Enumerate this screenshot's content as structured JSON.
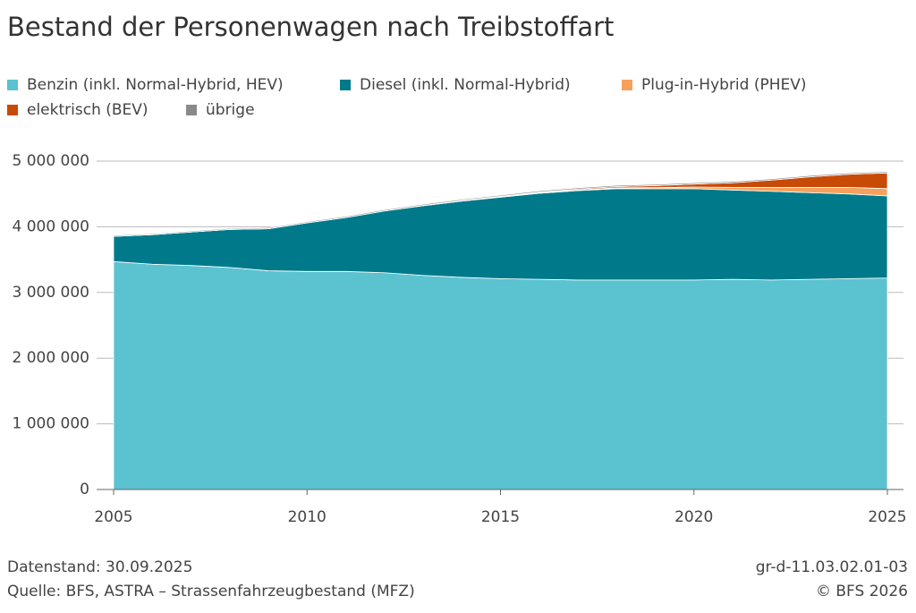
{
  "chart_data": {
    "type": "stacked-area",
    "title": "Bestand der Personenwagen nach Treibstoffart",
    "x": [
      2005,
      2006,
      2007,
      2008,
      2009,
      2010,
      2011,
      2012,
      2013,
      2014,
      2015,
      2016,
      2017,
      2018,
      2019,
      2020,
      2021,
      2022,
      2023,
      2024,
      2025
    ],
    "series": [
      {
        "name": "Benzin (inkl. Normal-Hybrid, HEV)",
        "color": "#5bc2d0",
        "values": [
          3470000,
          3430000,
          3410000,
          3380000,
          3330000,
          3320000,
          3320000,
          3300000,
          3260000,
          3230000,
          3210000,
          3200000,
          3190000,
          3190000,
          3190000,
          3190000,
          3200000,
          3190000,
          3200000,
          3210000,
          3220000
        ]
      },
      {
        "name": "Diesel (inkl. Normal-Hybrid)",
        "color": "#007a8a",
        "values": [
          385000,
          450000,
          510000,
          580000,
          640000,
          740000,
          820000,
          940000,
          1060000,
          1160000,
          1240000,
          1310000,
          1360000,
          1390000,
          1390000,
          1390000,
          1360000,
          1350000,
          1320000,
          1290000,
          1250000
        ]
      },
      {
        "name": "Plug-in-Hybrid (PHEV)",
        "color": "#f5a15d",
        "values": [
          0,
          0,
          0,
          0,
          0,
          0,
          0,
          500,
          1500,
          3000,
          5000,
          7000,
          9000,
          12000,
          16000,
          25000,
          40000,
          60000,
          80000,
          100000,
          110000
        ]
      },
      {
        "name": "elektrisch (BEV)",
        "color": "#c84a07",
        "values": [
          500,
          500,
          600,
          700,
          800,
          1000,
          1500,
          2000,
          3000,
          5000,
          8000,
          11000,
          15000,
          20000,
          30000,
          45000,
          70000,
          110000,
          160000,
          200000,
          240000
        ]
      },
      {
        "name": "übrige",
        "color": "#8a8a8a",
        "values": [
          15000,
          15000,
          15000,
          15000,
          16000,
          16000,
          17000,
          17000,
          18000,
          18000,
          18000,
          19000,
          19000,
          19000,
          20000,
          20000,
          20000,
          20000,
          20000,
          20000,
          20000
        ]
      }
    ],
    "xlim": [
      2005,
      2025
    ],
    "xticks": [
      2005,
      2010,
      2015,
      2020,
      2025
    ],
    "ylim": [
      0,
      5000000
    ],
    "yticks": [
      0,
      {
        "value": 1000000,
        "label": "1 000 000"
      },
      {
        "value": 2000000,
        "label": "2 000 000"
      },
      {
        "value": 3000000,
        "label": "3 000 000"
      },
      {
        "value": 4000000,
        "label": "4 000 000"
      },
      {
        "value": 5000000,
        "label": "5 000 000"
      }
    ],
    "grid": true,
    "footer_left": [
      "Datenstand: 30.09.2025",
      "Quelle: BFS, ASTRA – Strassenfahrzeugbestand (MFZ)"
    ],
    "footer_right": [
      "gr-d-11.03.02.01-03",
      "© BFS 2026"
    ]
  }
}
